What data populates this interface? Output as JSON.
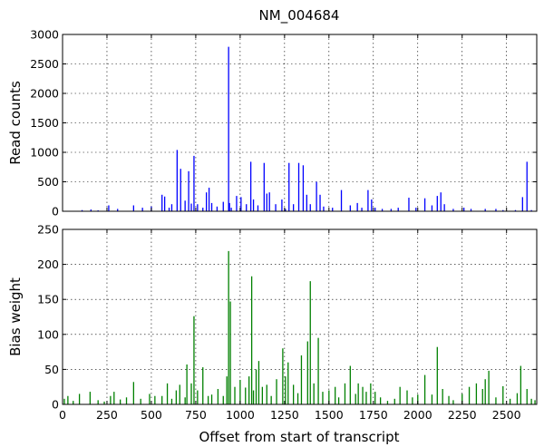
{
  "chart_data": {
    "title": "NM_004684",
    "xlabel": "Offset from start of transcript",
    "xlim": [
      0,
      2670
    ],
    "xticks": [
      0,
      250,
      500,
      750,
      1000,
      1250,
      1500,
      1750,
      2000,
      2250,
      2500
    ],
    "xtick_labels": [
      "0",
      "250",
      "500",
      "750",
      "1000",
      "1250",
      "1500",
      "1750",
      "2000",
      "2250",
      "2500"
    ],
    "grid": true,
    "panels": [
      {
        "type": "bar",
        "ylabel": "Read counts",
        "ylim": [
          0,
          3000
        ],
        "yticks": [
          0,
          500,
          1000,
          1500,
          2000,
          2500,
          3000
        ],
        "ytick_labels": [
          "0",
          "500",
          "1000",
          "1500",
          "2000",
          "2500",
          "3000"
        ],
        "color": "#0000ff",
        "series": [
          {
            "x": [
              110,
              160,
              200,
              260,
              310,
              400,
              450,
              500,
              560,
              575,
              600,
              615,
              645,
              665,
              690,
              710,
              725,
              740,
              760,
              790,
              810,
              825,
              840,
              870,
              905,
              935,
              940,
              950,
              980,
              1005,
              1035,
              1060,
              1075,
              1100,
              1135,
              1150,
              1165,
              1200,
              1235,
              1255,
              1275,
              1300,
              1330,
              1355,
              1375,
              1395,
              1430,
              1450,
              1470,
              1520,
              1570,
              1620,
              1660,
              1685,
              1720,
              1740,
              1760,
              1800,
              1850,
              1890,
              1950,
              1990,
              2040,
              2080,
              2110,
              2130,
              2150,
              2200,
              2260,
              2300,
              2380,
              2440,
              2480,
              2550,
              2590,
              2615,
              2640
            ],
            "values": [
              20,
              30,
              15,
              100,
              40,
              100,
              60,
              80,
              280,
              250,
              60,
              120,
              1040,
              720,
              180,
              680,
              130,
              940,
              120,
              60,
              320,
              400,
              140,
              80,
              160,
              2790,
              140,
              60,
              260,
              240,
              120,
              840,
              200,
              100,
              820,
              300,
              320,
              120,
              200,
              40,
              820,
              120,
              820,
              780,
              280,
              120,
              500,
              280,
              80,
              60,
              360,
              100,
              140,
              60,
              360,
              200,
              60,
              40,
              40,
              60,
              230,
              60,
              220,
              100,
              260,
              320,
              120,
              40,
              60,
              40,
              40,
              40,
              20,
              20,
              240,
              840,
              20
            ]
          }
        ]
      },
      {
        "type": "bar",
        "ylabel": "Bias weight",
        "ylim": [
          0,
          250
        ],
        "yticks": [
          0,
          50,
          100,
          150,
          200,
          250
        ],
        "ytick_labels": [
          "0",
          "50",
          "100",
          "150",
          "200",
          "250"
        ],
        "color": "#008000",
        "series": [
          {
            "x": [
              10,
              30,
              60,
              95,
              155,
              200,
              235,
              270,
              290,
              325,
              360,
              400,
              440,
              490,
              520,
              560,
              590,
              615,
              640,
              660,
              690,
              700,
              725,
              740,
              760,
              790,
              820,
              840,
              875,
              905,
              925,
              935,
              945,
              970,
              1000,
              1030,
              1050,
              1065,
              1075,
              1090,
              1105,
              1125,
              1150,
              1175,
              1205,
              1240,
              1255,
              1270,
              1300,
              1325,
              1345,
              1380,
              1395,
              1415,
              1440,
              1465,
              1500,
              1535,
              1555,
              1590,
              1620,
              1650,
              1665,
              1690,
              1710,
              1735,
              1760,
              1790,
              1830,
              1870,
              1900,
              1940,
              1970,
              2000,
              2040,
              2080,
              2110,
              2140,
              2175,
              2200,
              2250,
              2290,
              2330,
              2365,
              2380,
              2400,
              2440,
              2480,
              2520,
              2560,
              2580,
              2615,
              2640,
              2660
            ],
            "values": [
              8,
              12,
              5,
              15,
              18,
              6,
              4,
              12,
              18,
              7,
              10,
              32,
              8,
              15,
              12,
              12,
              30,
              8,
              20,
              28,
              10,
              57,
              30,
              126,
              20,
              53,
              12,
              14,
              22,
              12,
              40,
              219,
              147,
              25,
              35,
              24,
              40,
              183,
              20,
              50,
              62,
              25,
              28,
              12,
              36,
              80,
              40,
              60,
              28,
              16,
              70,
              90,
              176,
              30,
              95,
              18,
              20,
              25,
              10,
              30,
              55,
              15,
              30,
              25,
              18,
              30,
              18,
              10,
              5,
              8,
              25,
              20,
              10,
              14,
              42,
              14,
              82,
              22,
              12,
              6,
              15,
              25,
              30,
              22,
              36,
              48,
              10,
              26,
              8,
              16,
              55,
              22,
              8,
              6
            ]
          }
        ]
      }
    ]
  }
}
